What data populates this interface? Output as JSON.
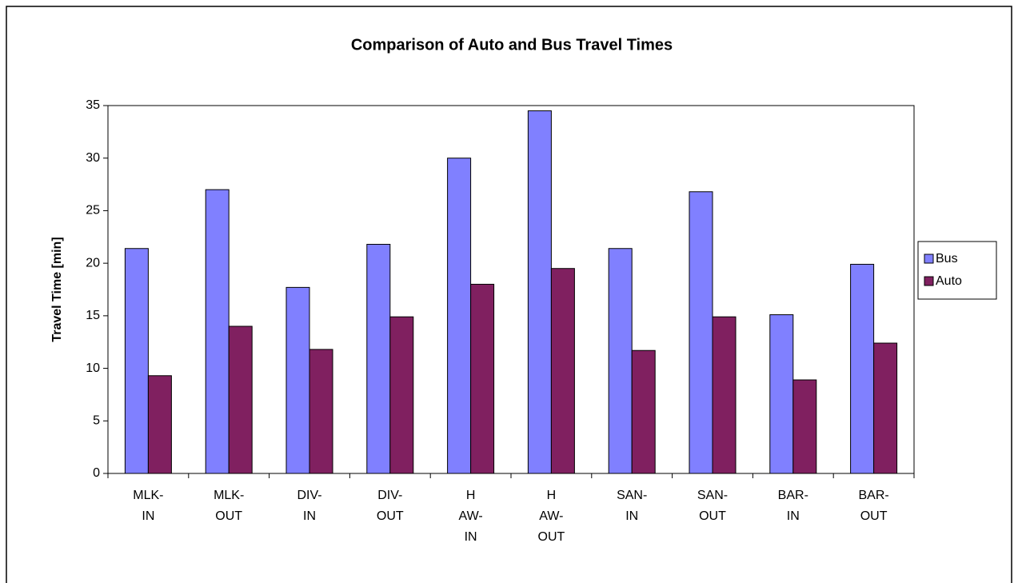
{
  "chart_data": {
    "type": "bar",
    "title": "Comparison of Auto and Bus Travel Times",
    "y_label": "Travel Time [min]",
    "categories": [
      [
        "MLK-",
        "IN"
      ],
      [
        "MLK-",
        "OUT"
      ],
      [
        "DIV-",
        "IN"
      ],
      [
        "DIV-",
        "OUT"
      ],
      [
        "H",
        "AW-",
        "IN"
      ],
      [
        "H",
        "AW-",
        "OUT"
      ],
      [
        "SAN-",
        "IN"
      ],
      [
        "SAN-",
        "OUT"
      ],
      [
        "BAR-",
        "IN"
      ],
      [
        "BAR-",
        "OUT"
      ]
    ],
    "series": [
      {
        "name": "Bus",
        "color": "#8080ff",
        "values": [
          21.4,
          27.0,
          17.7,
          21.8,
          30.0,
          34.5,
          21.4,
          26.8,
          15.1,
          19.9
        ]
      },
      {
        "name": "Auto",
        "color": "#802060",
        "values": [
          9.3,
          14.0,
          11.8,
          14.9,
          18.0,
          19.5,
          11.7,
          14.9,
          8.9,
          12.4
        ]
      }
    ],
    "ylim": [
      0,
      35
    ],
    "yticks": [
      0,
      5,
      10,
      15,
      20,
      25,
      30,
      35
    ],
    "legend": "right"
  }
}
